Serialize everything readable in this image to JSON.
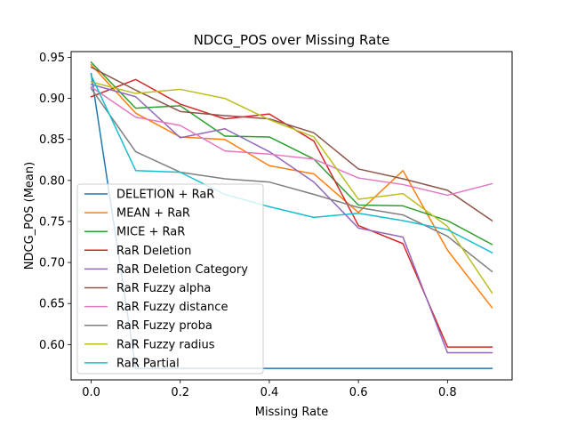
{
  "chart_data": {
    "type": "line",
    "title": "NDCG_POS over Missing Rate",
    "xlabel": "Missing Rate",
    "ylabel": "NDCG_POS (Mean)",
    "xlim": [
      -0.045,
      0.945
    ],
    "ylim": [
      0.557,
      0.957
    ],
    "xticks": [
      0.0,
      0.2,
      0.4,
      0.6,
      0.8
    ],
    "xtick_labels": [
      "0.0",
      "0.2",
      "0.4",
      "0.6",
      "0.8"
    ],
    "yticks": [
      0.6,
      0.65,
      0.7,
      0.75,
      0.8,
      0.85,
      0.9,
      0.95
    ],
    "ytick_labels": [
      "0.60",
      "0.65",
      "0.70",
      "0.75",
      "0.80",
      "0.85",
      "0.90",
      "0.95"
    ],
    "grid": false,
    "legend_position": "lower-left",
    "x": [
      0.0,
      0.1,
      0.2,
      0.3,
      0.4,
      0.5,
      0.6,
      0.7,
      0.8,
      0.9
    ],
    "series": [
      {
        "name": "DELETION + RaR",
        "color": "#1f77b4",
        "values": [
          0.93,
          0.571,
          0.571,
          0.571,
          0.571,
          0.571,
          0.571,
          0.571,
          0.571,
          0.571
        ]
      },
      {
        "name": "MEAN + RaR",
        "color": "#ff7f0e",
        "values": [
          0.941,
          0.882,
          0.853,
          0.85,
          0.818,
          0.808,
          0.761,
          0.812,
          0.715,
          0.645
        ]
      },
      {
        "name": "MICE + RaR",
        "color": "#2ca02c",
        "values": [
          0.944,
          0.888,
          0.891,
          0.854,
          0.853,
          0.826,
          0.77,
          0.769,
          0.751,
          0.722
        ]
      },
      {
        "name": "RaR Deletion",
        "color": "#d62728",
        "values": [
          0.902,
          0.923,
          0.893,
          0.875,
          0.881,
          0.848,
          0.745,
          0.723,
          0.597,
          0.597
        ]
      },
      {
        "name": "RaR Deletion Category",
        "color": "#9467bd",
        "values": [
          0.917,
          0.902,
          0.852,
          0.863,
          0.835,
          0.798,
          0.742,
          0.731,
          0.59,
          0.59
        ]
      },
      {
        "name": "RaR Fuzzy alpha",
        "color": "#8c564b",
        "values": [
          0.938,
          0.91,
          0.884,
          0.879,
          0.875,
          0.858,
          0.814,
          0.802,
          0.788,
          0.751
        ]
      },
      {
        "name": "RaR Fuzzy distance",
        "color": "#e377c2",
        "values": [
          0.914,
          0.877,
          0.867,
          0.836,
          0.832,
          0.826,
          0.803,
          0.795,
          0.782,
          0.796
        ]
      },
      {
        "name": "RaR Fuzzy proba",
        "color": "#7f7f7f",
        "values": [
          0.912,
          0.835,
          0.81,
          0.802,
          0.798,
          0.783,
          0.767,
          0.758,
          0.732,
          0.689
        ]
      },
      {
        "name": "RaR Fuzzy radius",
        "color": "#bcbd22",
        "values": [
          0.92,
          0.906,
          0.911,
          0.9,
          0.874,
          0.853,
          0.777,
          0.784,
          0.744,
          0.663
        ]
      },
      {
        "name": "RaR Partial",
        "color": "#17becf",
        "values": [
          0.928,
          0.812,
          0.81,
          0.783,
          0.768,
          0.755,
          0.76,
          0.751,
          0.74,
          0.712
        ]
      }
    ]
  }
}
